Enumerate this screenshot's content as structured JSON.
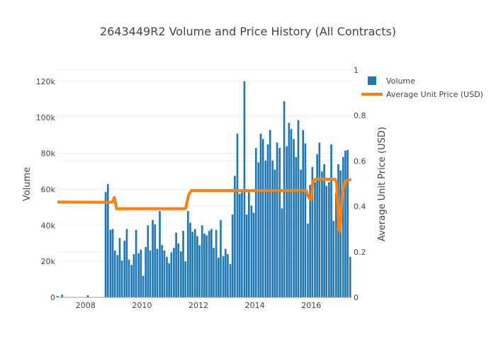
{
  "chart_data": {
    "type": "bar+line",
    "title": "2643449R2 Volume and Price History (All Contracts)",
    "xlabel": "",
    "ylabel": "Volume",
    "y2label": "Average Unit Price (USD)",
    "xlim": [
      2007.0,
      2017.45
    ],
    "ylim": [
      0,
      120000
    ],
    "y2lim": [
      0,
      1
    ],
    "x_ticks": [
      2008,
      2010,
      2012,
      2014,
      2016
    ],
    "x_tick_labels": [
      "2008",
      "2010",
      "2012",
      "2014",
      "2016"
    ],
    "y_ticks": [
      0,
      20000,
      40000,
      60000,
      80000,
      100000,
      120000
    ],
    "y_tick_labels": [
      "0",
      "20k",
      "40k",
      "60k",
      "80k",
      "100k",
      "120k"
    ],
    "y2_ticks": [
      0,
      0.2,
      0.4,
      0.6,
      0.8,
      1
    ],
    "y2_tick_labels": [
      "0",
      "0.2",
      "0.4",
      "0.6",
      "0.8",
      "1"
    ],
    "grid": true,
    "legend": {
      "position": "top-right",
      "entries": [
        "Volume",
        "Average Unit Price (USD)"
      ]
    },
    "colors": {
      "volume": "#1f77b4",
      "price": "#ff7f0e",
      "grid": "#eeeeee",
      "text": "#444444"
    },
    "series": [
      {
        "name": "Volume",
        "type": "bar",
        "x": [
          2007.0,
          2007.17,
          2008.08,
          2008.71,
          2008.79,
          2008.88,
          2008.96,
          2009.04,
          2009.13,
          2009.21,
          2009.29,
          2009.38,
          2009.46,
          2009.54,
          2009.63,
          2009.71,
          2009.79,
          2009.88,
          2009.96,
          2010.04,
          2010.13,
          2010.21,
          2010.29,
          2010.38,
          2010.46,
          2010.54,
          2010.63,
          2010.71,
          2010.79,
          2010.88,
          2010.96,
          2011.04,
          2011.13,
          2011.21,
          2011.29,
          2011.38,
          2011.46,
          2011.54,
          2011.63,
          2011.71,
          2011.79,
          2011.88,
          2011.96,
          2012.04,
          2012.13,
          2012.21,
          2012.29,
          2012.38,
          2012.46,
          2012.54,
          2012.63,
          2012.71,
          2012.79,
          2012.88,
          2012.96,
          2013.04,
          2013.13,
          2013.21,
          2013.29,
          2013.38,
          2013.46,
          2013.54,
          2013.63,
          2013.71,
          2013.79,
          2013.88,
          2013.96,
          2014.04,
          2014.13,
          2014.21,
          2014.29,
          2014.38,
          2014.46,
          2014.54,
          2014.63,
          2014.71,
          2014.79,
          2014.88,
          2014.96,
          2015.04,
          2015.13,
          2015.21,
          2015.29,
          2015.38,
          2015.46,
          2015.54,
          2015.63,
          2015.71,
          2015.79,
          2015.88,
          2015.96,
          2016.04,
          2016.13,
          2016.21,
          2016.29,
          2016.38,
          2016.46,
          2016.54,
          2016.63,
          2016.71,
          2016.79,
          2016.88,
          2016.96,
          2017.04,
          2017.13,
          2017.21,
          2017.29,
          2017.38
        ],
        "values": [
          800,
          1500,
          1200,
          58500,
          63000,
          37500,
          38000,
          26000,
          23500,
          33000,
          20500,
          31500,
          38000,
          21000,
          18000,
          24000,
          37500,
          24500,
          26500,
          12000,
          28000,
          40000,
          26000,
          43000,
          40500,
          27000,
          48000,
          29000,
          26000,
          22500,
          19000,
          25000,
          27500,
          36000,
          30000,
          25500,
          37000,
          20000,
          48000,
          41500,
          36500,
          38000,
          34000,
          29000,
          40000,
          35500,
          34500,
          37000,
          38000,
          27500,
          37500,
          22000,
          43000,
          23000,
          27000,
          24000,
          18500,
          46000,
          67500,
          91000,
          57500,
          58500,
          120000,
          46000,
          58500,
          51000,
          47000,
          83000,
          75000,
          91000,
          88000,
          76000,
          85000,
          93000,
          76000,
          71000,
          86000,
          83000,
          49500,
          109000,
          84000,
          97000,
          93500,
          88000,
          78000,
          98500,
          71000,
          93000,
          85500,
          41000,
          62500,
          72500,
          64000,
          79500,
          86000,
          70000,
          74000,
          62000,
          64000,
          85000,
          42500,
          58000,
          74000,
          70500,
          78000,
          81500,
          82000,
          22500
        ]
      },
      {
        "name": "Average Unit Price (USD)",
        "type": "line",
        "x": [
          2007.0,
          2008.85,
          2008.95,
          2009.02,
          2009.1,
          2011.5,
          2011.55,
          2011.65,
          2011.75,
          2015.75,
          2015.82,
          2015.9,
          2016.0,
          2016.05,
          2016.15,
          2016.85,
          2016.9,
          2016.97,
          2017.02,
          2017.1,
          2017.2,
          2017.42
        ],
        "values": [
          0.42,
          0.418,
          0.42,
          0.44,
          0.39,
          0.39,
          0.392,
          0.45,
          0.47,
          0.47,
          0.47,
          0.44,
          0.43,
          0.51,
          0.52,
          0.52,
          0.5,
          0.3,
          0.29,
          0.45,
          0.51,
          0.52
        ]
      }
    ]
  }
}
